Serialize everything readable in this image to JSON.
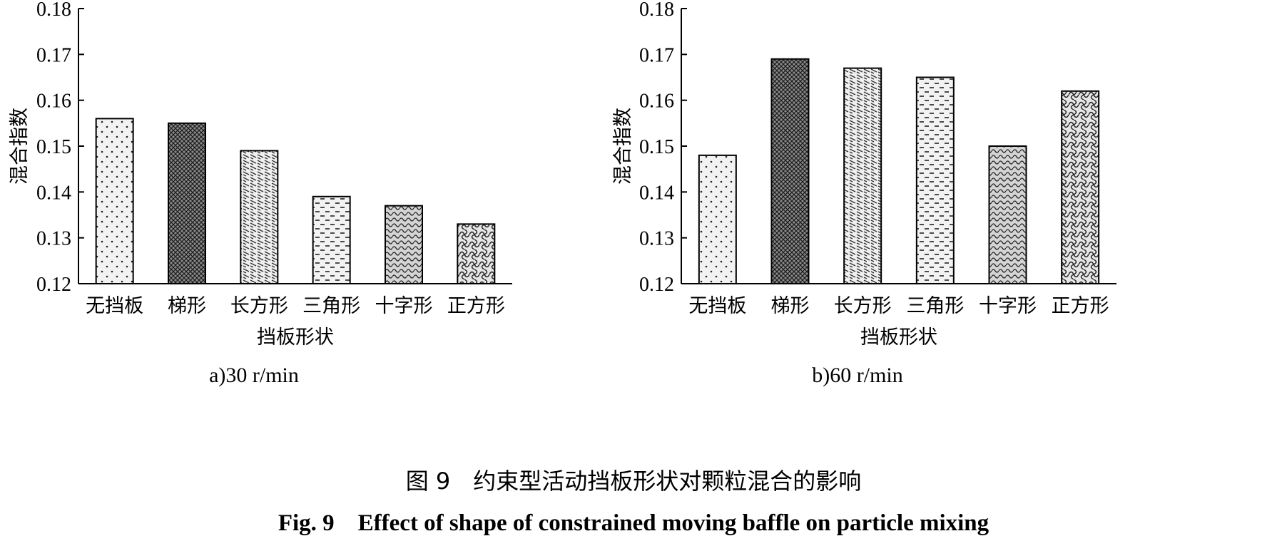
{
  "chart_data": [
    {
      "type": "bar",
      "subcaption": "a)30 r/min",
      "categories": [
        "无挡板",
        "梯形",
        "长方形",
        "三角形",
        "十字形",
        "正方形"
      ],
      "values": [
        0.156,
        0.155,
        0.149,
        0.139,
        0.137,
        0.133
      ],
      "xlabel": "挡板形状",
      "ylabel": "混合指数",
      "ylim": [
        0.12,
        0.18
      ],
      "yticks": [
        "0.12",
        "0.13",
        "0.14",
        "0.15",
        "0.16",
        "0.17",
        "0.18"
      ],
      "grid": false,
      "patterns": [
        "dots",
        "crosshatch",
        "diagonal",
        "dashes",
        "waves",
        "weave"
      ]
    },
    {
      "type": "bar",
      "subcaption": "b)60 r/min",
      "categories": [
        "无挡板",
        "梯形",
        "长方形",
        "三角形",
        "十字形",
        "正方形"
      ],
      "values": [
        0.148,
        0.169,
        0.167,
        0.165,
        0.15,
        0.162
      ],
      "xlabel": "挡板形状",
      "ylabel": "混合指数",
      "ylim": [
        0.12,
        0.18
      ],
      "yticks": [
        "0.12",
        "0.13",
        "0.14",
        "0.15",
        "0.16",
        "0.17",
        "0.18"
      ],
      "grid": false,
      "patterns": [
        "dots",
        "crosshatch",
        "diagonal",
        "dashes",
        "waves",
        "weave"
      ]
    }
  ],
  "caption": {
    "cn": "图 9　约束型活动挡板形状对颗粒混合的影响",
    "en": "Fig. 9　Effect of shape of constrained moving baffle on particle mixing"
  }
}
